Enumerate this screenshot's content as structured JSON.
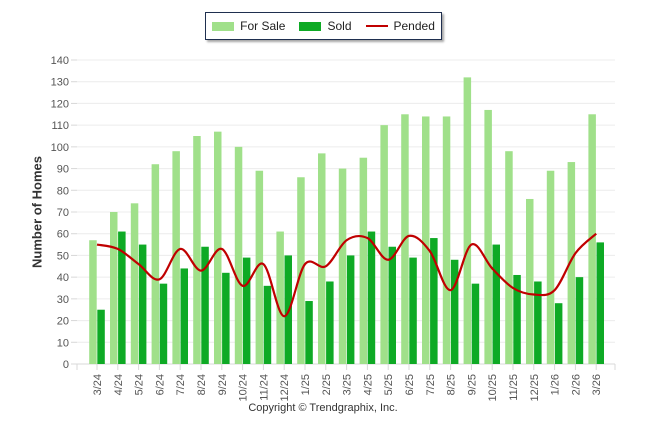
{
  "chart_data": {
    "type": "bar",
    "title": "",
    "xlabel": "",
    "ylabel": "Number of Homes",
    "ylim": [
      0,
      140
    ],
    "yticks": [
      0,
      10,
      20,
      30,
      40,
      50,
      60,
      70,
      80,
      90,
      100,
      110,
      120,
      130,
      140
    ],
    "grid": true,
    "legend_position": "top-center",
    "categories": [
      "3/24",
      "4/24",
      "5/24",
      "6/24",
      "7/24",
      "8/24",
      "9/24",
      "10/24",
      "11/24",
      "12/24",
      "1/25",
      "2/25",
      "3/25",
      "4/25",
      "5/25",
      "6/25",
      "7/25",
      "8/25",
      "9/25",
      "10/25",
      "11/25",
      "12/25",
      "1/26",
      "2/26",
      "3/26"
    ],
    "series": [
      {
        "name": "For Sale",
        "type": "bar",
        "color": "#a0e08a",
        "values": [
          57,
          70,
          74,
          92,
          98,
          105,
          107,
          100,
          89,
          61,
          86,
          97,
          90,
          95,
          110,
          115,
          114,
          114,
          132,
          117,
          98,
          76,
          89,
          93,
          115
        ]
      },
      {
        "name": "Sold",
        "type": "bar",
        "color": "#0eaa25",
        "values": [
          25,
          61,
          55,
          37,
          44,
          54,
          42,
          49,
          36,
          50,
          29,
          38,
          50,
          61,
          54,
          49,
          58,
          48,
          37,
          55,
          41,
          38,
          28,
          40,
          56
        ]
      },
      {
        "name": "Pended",
        "type": "line",
        "color": "#c00000",
        "values": [
          55,
          53,
          46,
          39,
          53,
          43,
          53,
          36,
          46,
          22,
          46,
          45,
          57,
          58,
          48,
          59,
          52,
          34,
          55,
          44,
          35,
          32,
          34,
          51,
          60
        ]
      }
    ]
  },
  "footer": {
    "copyright": "Copyright © Trendgraphix, Inc."
  }
}
